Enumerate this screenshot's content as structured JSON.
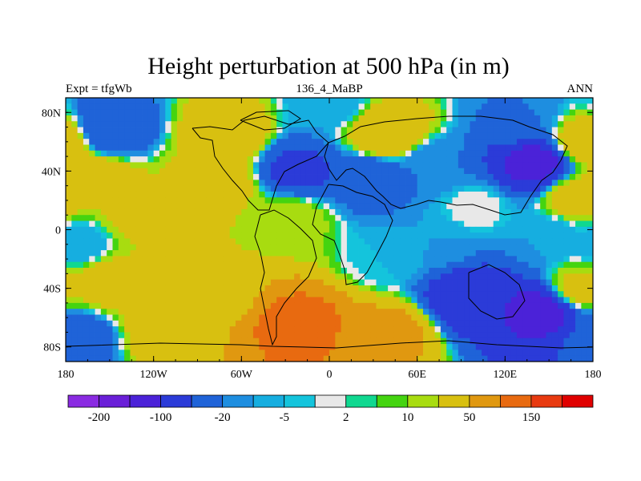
{
  "chart_data": {
    "type": "heatmap",
    "title": "Height perturbation at 500 hPa (in m)",
    "left_label": "Expt = tfgWb",
    "center_label": "136_4_MaBP",
    "right_label": "ANN",
    "variable": "500 hPa geopotential height perturbation",
    "units": "m",
    "x_range": [
      -180,
      180
    ],
    "y_range": [
      -90,
      90
    ],
    "x_ticks": [
      {
        "value": -180,
        "label": "180"
      },
      {
        "value": -120,
        "label": "120W"
      },
      {
        "value": -60,
        "label": "60W"
      },
      {
        "value": 0,
        "label": "0"
      },
      {
        "value": 60,
        "label": "60E"
      },
      {
        "value": 120,
        "label": "120E"
      },
      {
        "value": 180,
        "label": "180"
      }
    ],
    "y_ticks": [
      {
        "value": 80,
        "label": "80N"
      },
      {
        "value": 40,
        "label": "40N"
      },
      {
        "value": 0,
        "label": "0"
      },
      {
        "value": -40,
        "label": "40S"
      },
      {
        "value": -80,
        "label": "80S"
      }
    ],
    "colorbar": {
      "levels": [
        -200,
        -150,
        -100,
        -50,
        -20,
        -10,
        -5,
        -2,
        2,
        5,
        10,
        20,
        50,
        100,
        150,
        200
      ],
      "labels": [
        {
          "level": -200,
          "label": "-200"
        },
        {
          "level": -100,
          "label": "-100"
        },
        {
          "level": -20,
          "label": "-20"
        },
        {
          "level": -5,
          "label": "-5"
        },
        {
          "level": 2,
          "label": "2"
        },
        {
          "level": 10,
          "label": "10"
        },
        {
          "level": 50,
          "label": "50"
        },
        {
          "level": 150,
          "label": "150"
        }
      ],
      "colors": [
        "#8a2be2",
        "#6a1fd8",
        "#4b22d8",
        "#2b3bd8",
        "#1f63d8",
        "#1e8ee0",
        "#16aee0",
        "#14c4dc",
        "#e8e8e8",
        "#10d890",
        "#44d410",
        "#a8dc10",
        "#d8c010",
        "#e09810",
        "#e86a10",
        "#e83a10",
        "#e00000"
      ]
    },
    "fields": [
      {
        "lon": 0,
        "lat": 85,
        "value": -10
      },
      {
        "lon": -150,
        "lat": 68,
        "value": -50
      },
      {
        "lon": -160,
        "lat": 35,
        "value": 40
      },
      {
        "lon": -70,
        "lat": 65,
        "value": 40
      },
      {
        "lon": -75,
        "lat": 32,
        "value": 35
      },
      {
        "lon": 40,
        "lat": 65,
        "value": 50
      },
      {
        "lon": -22,
        "lat": 40,
        "value": -60
      },
      {
        "lon": 28,
        "lat": 35,
        "value": -40
      },
      {
        "lon": 70,
        "lat": 45,
        "value": -20
      },
      {
        "lon": 140,
        "lat": 45,
        "value": -120
      },
      {
        "lon": 130,
        "lat": 75,
        "value": -20
      },
      {
        "lon": 168,
        "lat": 22,
        "value": 30
      },
      {
        "lon": 175,
        "lat": 60,
        "value": 40
      },
      {
        "lon": -130,
        "lat": 8,
        "value": 25
      },
      {
        "lon": -65,
        "lat": 5,
        "value": 20
      },
      {
        "lon": -25,
        "lat": 8,
        "value": 15
      },
      {
        "lon": -150,
        "lat": -35,
        "value": 35
      },
      {
        "lon": -80,
        "lat": -40,
        "value": 25
      },
      {
        "lon": -20,
        "lat": -65,
        "value": 120
      },
      {
        "lon": -110,
        "lat": -70,
        "value": 40
      },
      {
        "lon": 40,
        "lat": -70,
        "value": 60
      },
      {
        "lon": 95,
        "lat": -45,
        "value": -90
      },
      {
        "lon": 145,
        "lat": -55,
        "value": -120
      },
      {
        "lon": 170,
        "lat": -40,
        "value": 25
      },
      {
        "lon": -175,
        "lat": -75,
        "value": -40
      },
      {
        "lon": 40,
        "lat": -20,
        "value": -5
      },
      {
        "lon": 75,
        "lat": -10,
        "value": -10
      },
      {
        "lon": 150,
        "lat": -5,
        "value": -10
      },
      {
        "lon": -170,
        "lat": -10,
        "value": -10
      },
      {
        "lon": 100,
        "lat": 15,
        "value": 0
      }
    ]
  }
}
